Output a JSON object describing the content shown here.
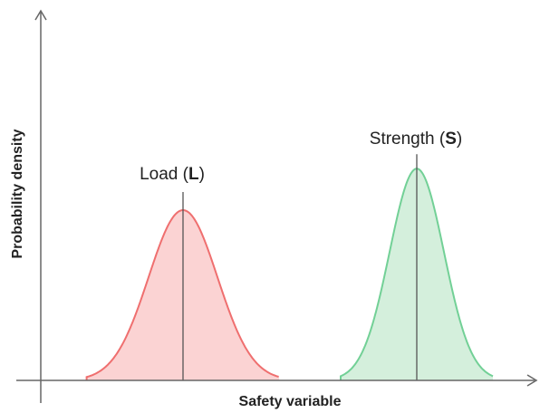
{
  "axes": {
    "xlabel": "Safety variable",
    "ylabel": "Probability density"
  },
  "curves": [
    {
      "name": "Load",
      "symbol": "L",
      "label_open": "Load (",
      "label_close": ")",
      "mean": 202,
      "sd": 38,
      "peak": 0.78,
      "fill": "#fbd3d3",
      "stroke": "#ef6f6f"
    },
    {
      "name": "Strength",
      "symbol": "S",
      "label_open": "Strength (",
      "label_close": ")",
      "mean": 460,
      "sd": 30,
      "peak": 0.97,
      "fill": "#d4efdc",
      "stroke": "#72d096"
    }
  ],
  "colors": {
    "axis": "#666666",
    "mean_line": "#555555"
  }
}
